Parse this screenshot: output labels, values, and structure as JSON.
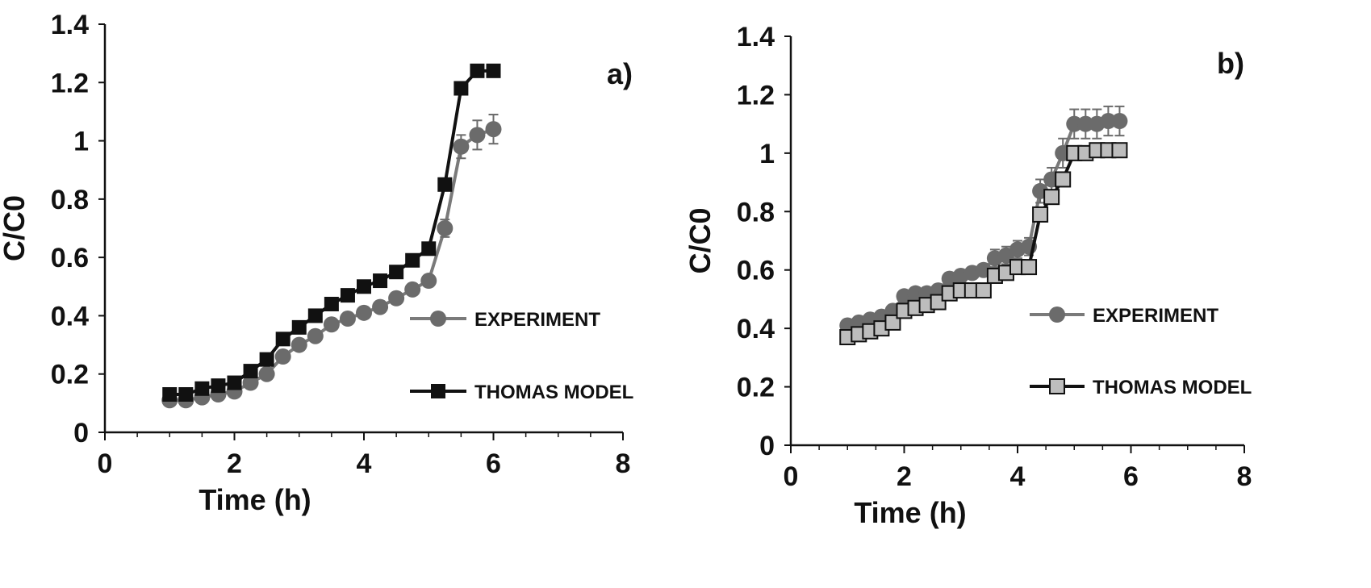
{
  "chart_data": [
    {
      "type": "line",
      "panel_label": "a)",
      "xlabel": "Time (h)",
      "ylabel": "C/C0",
      "xlim": [
        0,
        8
      ],
      "ylim": [
        0,
        1.4
      ],
      "xticks": [
        "0",
        "2",
        "4",
        "6",
        "8"
      ],
      "yticks": [
        "0",
        "0.2",
        "0.4",
        "0.6",
        "0.8",
        "1",
        "1.2",
        "1.4"
      ],
      "grid": false,
      "legend_position": "right-middle",
      "series": [
        {
          "name": "EXPERIMENT",
          "marker": "circle",
          "color": "#6b6b6b",
          "line_color": "#7a7a7a",
          "error_bars": true,
          "x": [
            1,
            1.25,
            1.5,
            1.75,
            2,
            2.25,
            2.5,
            2.75,
            3,
            3.25,
            3.5,
            3.75,
            4,
            4.25,
            4.5,
            4.75,
            5,
            5.25,
            5.5,
            5.75,
            6
          ],
          "values": [
            0.11,
            0.11,
            0.12,
            0.13,
            0.14,
            0.17,
            0.2,
            0.26,
            0.3,
            0.33,
            0.37,
            0.39,
            0.41,
            0.43,
            0.46,
            0.49,
            0.52,
            0.7,
            0.98,
            1.02,
            1.04
          ],
          "errors": [
            0.01,
            0.01,
            0.01,
            0.01,
            0.01,
            0.01,
            0.01,
            0.01,
            0.01,
            0.01,
            0.01,
            0.01,
            0.01,
            0.01,
            0.01,
            0.01,
            0.02,
            0.03,
            0.04,
            0.05,
            0.05
          ]
        },
        {
          "name": "THOMAS MODEL",
          "marker": "square",
          "color": "#111111",
          "line_color": "#111111",
          "error_bars": false,
          "x": [
            1,
            1.25,
            1.5,
            1.75,
            2,
            2.25,
            2.5,
            2.75,
            3,
            3.25,
            3.5,
            3.75,
            4,
            4.25,
            4.5,
            4.75,
            5,
            5.25,
            5.5,
            5.75,
            6
          ],
          "values": [
            0.13,
            0.13,
            0.15,
            0.16,
            0.17,
            0.21,
            0.25,
            0.32,
            0.36,
            0.4,
            0.44,
            0.47,
            0.5,
            0.52,
            0.55,
            0.59,
            0.63,
            0.85,
            1.18,
            1.24,
            1.24
          ]
        }
      ]
    },
    {
      "type": "line",
      "panel_label": "b)",
      "xlabel": "Time (h)",
      "ylabel": "C/C0",
      "xlim": [
        0,
        8
      ],
      "ylim": [
        0,
        1.4
      ],
      "xticks": [
        "0",
        "2",
        "4",
        "6",
        "8"
      ],
      "yticks": [
        "0",
        "0.2",
        "0.4",
        "0.6",
        "0.8",
        "1",
        "1.2",
        "1.4"
      ],
      "grid": false,
      "legend_position": "right-middle",
      "series": [
        {
          "name": "EXPERIMENT",
          "marker": "circle",
          "color": "#6b6b6b",
          "line_color": "#7a7a7a",
          "error_bars": true,
          "x": [
            1,
            1.2,
            1.4,
            1.6,
            1.8,
            2,
            2.2,
            2.4,
            2.6,
            2.8,
            3,
            3.2,
            3.4,
            3.6,
            3.8,
            4,
            4.2,
            4.4,
            4.6,
            4.8,
            5,
            5.2,
            5.4,
            5.6,
            5.8
          ],
          "values": [
            0.41,
            0.42,
            0.43,
            0.44,
            0.46,
            0.51,
            0.52,
            0.52,
            0.53,
            0.57,
            0.58,
            0.59,
            0.6,
            0.64,
            0.65,
            0.67,
            0.68,
            0.87,
            0.91,
            1.0,
            1.1,
            1.1,
            1.1,
            1.11,
            1.11
          ],
          "errors": [
            0.01,
            0.01,
            0.01,
            0.01,
            0.01,
            0.02,
            0.02,
            0.02,
            0.02,
            0.02,
            0.02,
            0.02,
            0.02,
            0.03,
            0.03,
            0.03,
            0.03,
            0.04,
            0.04,
            0.05,
            0.05,
            0.05,
            0.05,
            0.05,
            0.05
          ]
        },
        {
          "name": "THOMAS MODEL",
          "marker": "square",
          "color": "#bdbdbd",
          "line_color": "#111111",
          "error_bars": false,
          "x": [
            1,
            1.2,
            1.4,
            1.6,
            1.8,
            2,
            2.2,
            2.4,
            2.6,
            2.8,
            3,
            3.2,
            3.4,
            3.6,
            3.8,
            4,
            4.2,
            4.4,
            4.6,
            4.8,
            5,
            5.2,
            5.4,
            5.6,
            5.8
          ],
          "values": [
            0.37,
            0.38,
            0.39,
            0.4,
            0.42,
            0.46,
            0.47,
            0.48,
            0.49,
            0.52,
            0.53,
            0.53,
            0.53,
            0.58,
            0.59,
            0.61,
            0.61,
            0.79,
            0.85,
            0.91,
            1.0,
            1.0,
            1.01,
            1.01,
            1.01
          ]
        }
      ]
    }
  ]
}
